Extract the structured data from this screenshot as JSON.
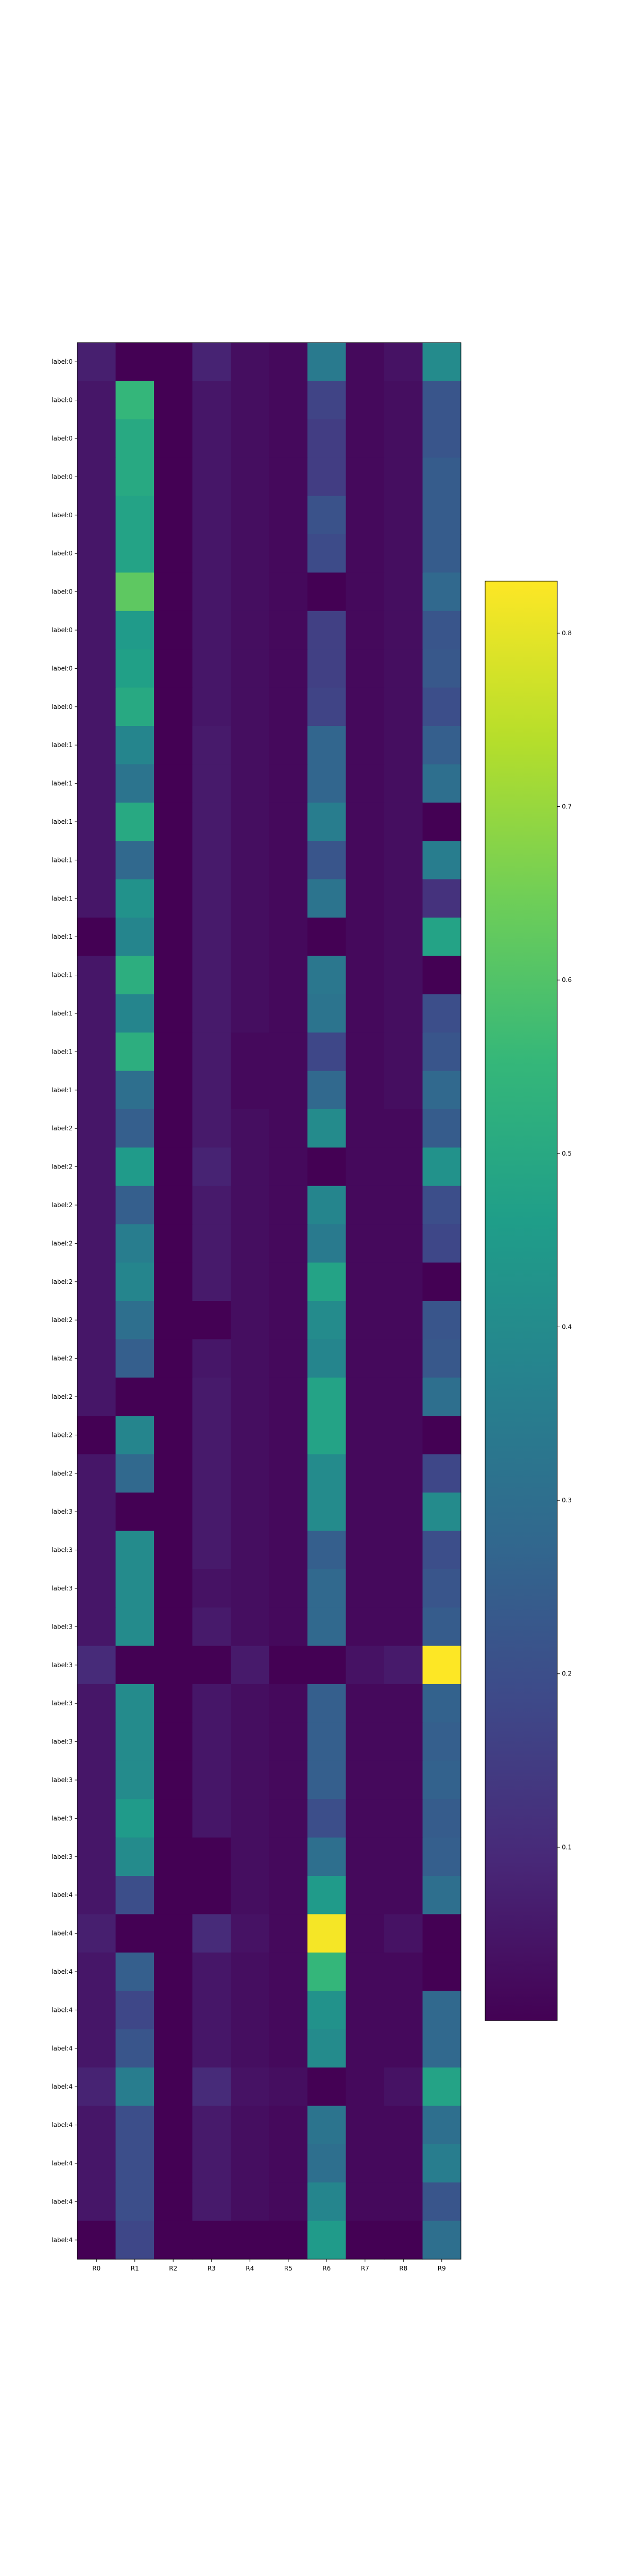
{
  "chart_data": {
    "type": "heatmap",
    "colormap": "viridis",
    "columns": [
      "R0",
      "R1",
      "R2",
      "R3",
      "R4",
      "R5",
      "R6",
      "R7",
      "R8",
      "R9"
    ],
    "rows": [
      "label:0",
      "label:0",
      "label:0",
      "label:0",
      "label:0",
      "label:0",
      "label:0",
      "label:0",
      "label:0",
      "label:0",
      "label:1",
      "label:1",
      "label:1",
      "label:1",
      "label:1",
      "label:1",
      "label:1",
      "label:1",
      "label:1",
      "label:1",
      "label:2",
      "label:2",
      "label:2",
      "label:2",
      "label:2",
      "label:2",
      "label:2",
      "label:2",
      "label:2",
      "label:2",
      "label:3",
      "label:3",
      "label:3",
      "label:3",
      "label:3",
      "label:3",
      "label:3",
      "label:3",
      "label:3",
      "label:3",
      "label:4",
      "label:4",
      "label:4",
      "label:4",
      "label:4",
      "label:4",
      "label:4",
      "label:4",
      "label:4",
      "label:4"
    ],
    "values": [
      [
        0.07,
        0.0,
        0.0,
        0.08,
        0.03,
        0.02,
        0.34,
        0.02,
        0.04,
        0.4
      ],
      [
        0.05,
        0.55,
        0.0,
        0.05,
        0.03,
        0.02,
        0.17,
        0.02,
        0.03,
        0.22
      ],
      [
        0.05,
        0.5,
        0.0,
        0.05,
        0.03,
        0.02,
        0.15,
        0.02,
        0.03,
        0.22
      ],
      [
        0.05,
        0.5,
        0.0,
        0.05,
        0.03,
        0.02,
        0.15,
        0.02,
        0.03,
        0.24
      ],
      [
        0.05,
        0.48,
        0.0,
        0.05,
        0.03,
        0.02,
        0.21,
        0.02,
        0.03,
        0.24
      ],
      [
        0.05,
        0.48,
        0.0,
        0.05,
        0.03,
        0.02,
        0.19,
        0.02,
        0.03,
        0.24
      ],
      [
        0.05,
        0.62,
        0.0,
        0.05,
        0.03,
        0.02,
        0.0,
        0.02,
        0.03,
        0.28
      ],
      [
        0.05,
        0.45,
        0.0,
        0.05,
        0.03,
        0.02,
        0.16,
        0.02,
        0.03,
        0.22
      ],
      [
        0.05,
        0.47,
        0.0,
        0.05,
        0.03,
        0.02,
        0.16,
        0.02,
        0.03,
        0.23
      ],
      [
        0.05,
        0.5,
        0.0,
        0.05,
        0.03,
        0.02,
        0.17,
        0.02,
        0.03,
        0.2
      ],
      [
        0.05,
        0.38,
        0.0,
        0.06,
        0.03,
        0.02,
        0.27,
        0.02,
        0.03,
        0.25
      ],
      [
        0.05,
        0.32,
        0.0,
        0.06,
        0.03,
        0.02,
        0.27,
        0.02,
        0.03,
        0.3
      ],
      [
        0.05,
        0.5,
        0.0,
        0.06,
        0.03,
        0.02,
        0.35,
        0.02,
        0.03,
        0.0
      ],
      [
        0.05,
        0.28,
        0.0,
        0.06,
        0.03,
        0.02,
        0.22,
        0.02,
        0.03,
        0.35
      ],
      [
        0.05,
        0.42,
        0.0,
        0.06,
        0.03,
        0.02,
        0.32,
        0.02,
        0.03,
        0.12
      ],
      [
        0.0,
        0.38,
        0.0,
        0.06,
        0.03,
        0.02,
        0.0,
        0.02,
        0.03,
        0.48
      ],
      [
        0.05,
        0.52,
        0.0,
        0.06,
        0.03,
        0.02,
        0.33,
        0.02,
        0.03,
        0.0
      ],
      [
        0.05,
        0.38,
        0.0,
        0.06,
        0.03,
        0.02,
        0.32,
        0.02,
        0.03,
        0.2
      ],
      [
        0.05,
        0.52,
        0.0,
        0.06,
        0.02,
        0.02,
        0.18,
        0.02,
        0.03,
        0.22
      ],
      [
        0.05,
        0.3,
        0.0,
        0.06,
        0.02,
        0.02,
        0.28,
        0.02,
        0.03,
        0.28
      ],
      [
        0.05,
        0.25,
        0.0,
        0.06,
        0.03,
        0.02,
        0.4,
        0.02,
        0.02,
        0.24
      ],
      [
        0.05,
        0.45,
        0.0,
        0.08,
        0.03,
        0.02,
        0.0,
        0.02,
        0.02,
        0.42
      ],
      [
        0.05,
        0.25,
        0.0,
        0.06,
        0.03,
        0.02,
        0.38,
        0.02,
        0.02,
        0.2
      ],
      [
        0.05,
        0.35,
        0.0,
        0.06,
        0.03,
        0.02,
        0.34,
        0.02,
        0.02,
        0.18
      ],
      [
        0.05,
        0.38,
        0.0,
        0.06,
        0.03,
        0.02,
        0.48,
        0.02,
        0.02,
        0.0
      ],
      [
        0.05,
        0.3,
        0.0,
        0.0,
        0.03,
        0.02,
        0.4,
        0.02,
        0.02,
        0.22
      ],
      [
        0.05,
        0.25,
        0.0,
        0.05,
        0.03,
        0.02,
        0.38,
        0.02,
        0.02,
        0.23
      ],
      [
        0.05,
        0.0,
        0.0,
        0.06,
        0.03,
        0.02,
        0.48,
        0.02,
        0.02,
        0.3
      ],
      [
        0.0,
        0.38,
        0.0,
        0.06,
        0.03,
        0.02,
        0.48,
        0.02,
        0.02,
        0.0
      ],
      [
        0.05,
        0.28,
        0.0,
        0.06,
        0.03,
        0.02,
        0.4,
        0.02,
        0.02,
        0.18
      ],
      [
        0.05,
        0.0,
        0.0,
        0.06,
        0.03,
        0.02,
        0.4,
        0.02,
        0.02,
        0.4
      ],
      [
        0.05,
        0.4,
        0.0,
        0.06,
        0.03,
        0.02,
        0.25,
        0.02,
        0.02,
        0.2
      ],
      [
        0.05,
        0.4,
        0.0,
        0.04,
        0.03,
        0.02,
        0.28,
        0.02,
        0.02,
        0.22
      ],
      [
        0.05,
        0.4,
        0.0,
        0.06,
        0.03,
        0.02,
        0.28,
        0.02,
        0.02,
        0.24
      ],
      [
        0.1,
        0.0,
        0.0,
        0.0,
        0.06,
        0.0,
        0.0,
        0.04,
        0.06,
        0.85
      ],
      [
        0.05,
        0.4,
        0.0,
        0.05,
        0.03,
        0.02,
        0.25,
        0.02,
        0.02,
        0.26
      ],
      [
        0.05,
        0.4,
        0.0,
        0.05,
        0.03,
        0.02,
        0.25,
        0.02,
        0.02,
        0.25
      ],
      [
        0.05,
        0.4,
        0.0,
        0.05,
        0.03,
        0.02,
        0.25,
        0.02,
        0.02,
        0.26
      ],
      [
        0.05,
        0.45,
        0.0,
        0.05,
        0.03,
        0.02,
        0.2,
        0.02,
        0.02,
        0.24
      ],
      [
        0.05,
        0.4,
        0.0,
        0.0,
        0.03,
        0.02,
        0.3,
        0.02,
        0.02,
        0.25
      ],
      [
        0.05,
        0.2,
        0.0,
        0.0,
        0.03,
        0.02,
        0.45,
        0.02,
        0.02,
        0.3
      ],
      [
        0.07,
        0.0,
        0.0,
        0.1,
        0.04,
        0.02,
        0.82,
        0.02,
        0.04,
        0.0
      ],
      [
        0.05,
        0.25,
        0.0,
        0.05,
        0.03,
        0.02,
        0.55,
        0.02,
        0.02,
        0.0
      ],
      [
        0.05,
        0.18,
        0.0,
        0.05,
        0.03,
        0.02,
        0.42,
        0.02,
        0.02,
        0.28
      ],
      [
        0.05,
        0.22,
        0.0,
        0.05,
        0.03,
        0.02,
        0.4,
        0.02,
        0.02,
        0.28
      ],
      [
        0.08,
        0.35,
        0.0,
        0.1,
        0.04,
        0.03,
        0.0,
        0.02,
        0.04,
        0.48
      ],
      [
        0.05,
        0.2,
        0.0,
        0.06,
        0.03,
        0.02,
        0.32,
        0.02,
        0.02,
        0.3
      ],
      [
        0.05,
        0.2,
        0.0,
        0.06,
        0.03,
        0.02,
        0.3,
        0.02,
        0.02,
        0.35
      ],
      [
        0.05,
        0.2,
        0.0,
        0.06,
        0.03,
        0.02,
        0.38,
        0.02,
        0.02,
        0.22
      ],
      [
        0.0,
        0.18,
        0.0,
        0.0,
        0.0,
        0.0,
        0.45,
        0.0,
        0.0,
        0.3
      ]
    ],
    "colorbar": {
      "ticks": [
        0.1,
        0.2,
        0.3,
        0.4,
        0.5,
        0.6,
        0.7,
        0.8
      ],
      "tick_labels": [
        "0.1",
        "0.2",
        "0.3",
        "0.4",
        "0.5",
        "0.6",
        "0.7",
        "0.8"
      ],
      "range": [
        0.0,
        0.83
      ]
    }
  }
}
